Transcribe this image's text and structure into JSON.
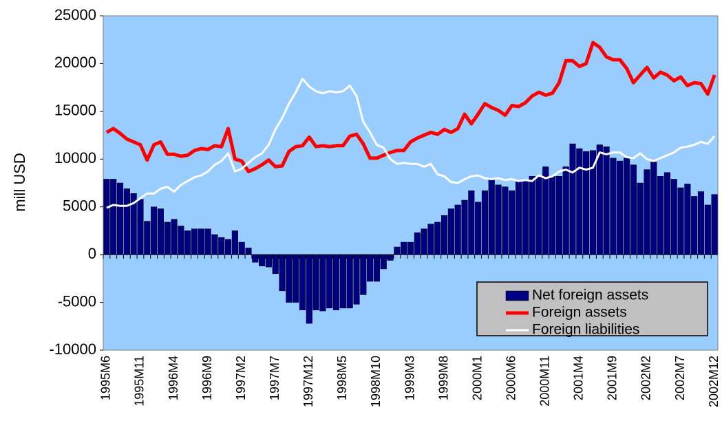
{
  "chart_data": {
    "type": "bar",
    "y_label": "mill USD",
    "categories": [
      "1995M6",
      null,
      null,
      null,
      null,
      "1995M11",
      null,
      null,
      null,
      null,
      "1996M4",
      null,
      null,
      null,
      null,
      "1996M9",
      null,
      null,
      null,
      null,
      "1997M2",
      null,
      null,
      null,
      null,
      "1997M7",
      null,
      null,
      null,
      null,
      "1997M12",
      null,
      null,
      null,
      null,
      "1998M5",
      null,
      null,
      null,
      null,
      "1998M10",
      null,
      null,
      null,
      null,
      "1999M3",
      null,
      null,
      null,
      null,
      "1999M8",
      null,
      null,
      null,
      null,
      "2000M1",
      null,
      null,
      null,
      null,
      "2000M6",
      null,
      null,
      null,
      null,
      "2000M11",
      null,
      null,
      null,
      null,
      "2001M4",
      null,
      null,
      null,
      null,
      "2001M9",
      null,
      null,
      null,
      null,
      "2002M2",
      null,
      null,
      null,
      null,
      "2002M7",
      null,
      null,
      null,
      null,
      "2002M12"
    ],
    "series": [
      {
        "name": "Net foreign assets",
        "type": "bar",
        "color": "#000080",
        "values": [
          7900,
          7900,
          7500,
          6900,
          6400,
          5800,
          3500,
          5000,
          4800,
          3400,
          3700,
          3000,
          2500,
          2700,
          2700,
          2700,
          2100,
          1800,
          1600,
          2500,
          1300,
          700,
          -800,
          -1200,
          -1300,
          -2000,
          -3800,
          -5000,
          -5000,
          -5800,
          -7200,
          -5800,
          -5900,
          -5600,
          -5800,
          -5600,
          -5600,
          -5200,
          -4200,
          -2800,
          -2800,
          -1500,
          -600,
          800,
          1300,
          1300,
          2300,
          2700,
          3200,
          3400,
          4100,
          4800,
          5200,
          5700,
          6700,
          5500,
          6700,
          7800,
          7300,
          7100,
          6700,
          7700,
          7700,
          8200,
          8200,
          9200,
          8200,
          8200,
          9200,
          11600,
          11100,
          10800,
          10900,
          11500,
          11300,
          10100,
          9800,
          10100,
          9400,
          7500,
          8900,
          9700,
          8200,
          8600,
          7900,
          7000,
          7400,
          6100,
          6600,
          5200,
          6300
        ]
      },
      {
        "name": "Foreign assets",
        "type": "line",
        "color": "#ff0000",
        "values": [
          12800,
          13200,
          12700,
          12100,
          11800,
          11500,
          9900,
          11500,
          11800,
          10500,
          10500,
          10300,
          10400,
          10900,
          11100,
          11000,
          11400,
          11300,
          13200,
          10000,
          9800,
          8700,
          9000,
          9400,
          9900,
          9200,
          9300,
          10800,
          11300,
          11400,
          12300,
          11300,
          11400,
          11300,
          11400,
          11400,
          12400,
          12600,
          11600,
          10100,
          10100,
          10400,
          10700,
          10900,
          10900,
          11800,
          12200,
          12500,
          12800,
          12600,
          13100,
          12800,
          13200,
          14700,
          13700,
          14700,
          15800,
          15400,
          15100,
          14600,
          15600,
          15500,
          15900,
          16600,
          17000,
          16700,
          16900,
          18000,
          20300,
          20300,
          19700,
          20000,
          22200,
          21700,
          20700,
          20400,
          20400,
          19500,
          18000,
          18800,
          19600,
          18500,
          19100,
          18800,
          18200,
          18600,
          17700,
          18000,
          17900,
          16800,
          18800
        ]
      },
      {
        "name": "Foreign liabilities",
        "type": "line",
        "color": "#ffffff",
        "values": [
          4900,
          5200,
          5100,
          5100,
          5400,
          5900,
          6400,
          6400,
          6900,
          7100,
          6600,
          7300,
          7700,
          8100,
          8300,
          8700,
          9400,
          9800,
          10600,
          8700,
          9000,
          9600,
          10200,
          10600,
          11500,
          13100,
          14300,
          15800,
          17000,
          18400,
          17600,
          17100,
          16900,
          17100,
          17000,
          17100,
          17700,
          16600,
          13900,
          12800,
          11500,
          11200,
          10000,
          9500,
          9600,
          9500,
          9500,
          9200,
          9500,
          8400,
          8200,
          7600,
          7500,
          7900,
          8200,
          8300,
          8000,
          7900,
          8000,
          7800,
          7900,
          7700,
          7800,
          7700,
          8300,
          8000,
          8200,
          8700,
          8900,
          8600,
          9100,
          8900,
          9100,
          10700,
          10500,
          10700,
          10700,
          10200,
          10100,
          10600,
          10000,
          9800,
          10100,
          10400,
          10700,
          11200,
          11300,
          11500,
          11800,
          11600,
          12400
        ]
      }
    ],
    "ylim": [
      -10000,
      25000
    ],
    "yticks": [
      -10000,
      -5000,
      0,
      5000,
      10000,
      15000,
      20000,
      25000
    ],
    "plot_background": "#99ccff",
    "legend": "lower right"
  }
}
